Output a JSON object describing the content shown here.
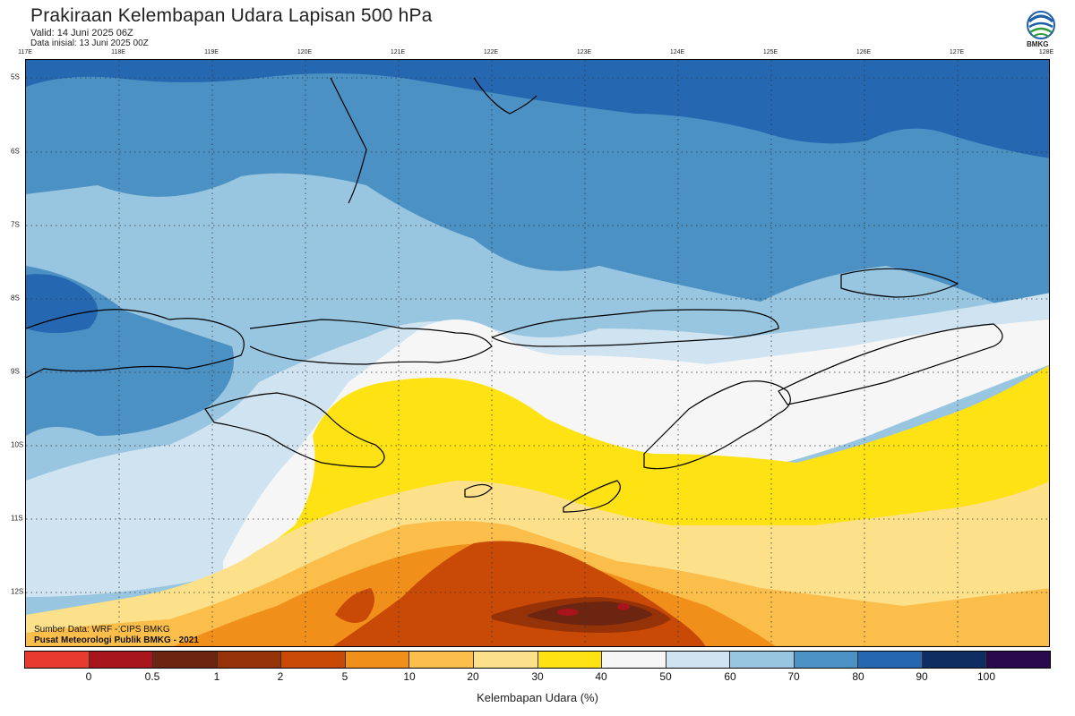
{
  "header": {
    "title": "Prakiraan Kelembapan Udara Lapisan 500 hPa",
    "valid": "Valid: 14 Juni 2025 06Z",
    "init": "Data inisial: 13 Juni 2025 00Z",
    "logo_text": "BMKG"
  },
  "axes": {
    "lon_labels": [
      "117E",
      "118E",
      "119E",
      "120E",
      "121E",
      "122E",
      "123E",
      "124E",
      "125E",
      "126E",
      "127E",
      "128E"
    ],
    "lat_labels": [
      "5S",
      "6S",
      "7S",
      "8S",
      "9S",
      "10S",
      "11S",
      "12S"
    ]
  },
  "credits": {
    "source": "Sumber Data: WRF - CIPS BMKG",
    "org": "Pusat Meteorologi Publik BMKG - 2021"
  },
  "legend": {
    "colors": [
      "#e63b2e",
      "#a8141b",
      "#6b2510",
      "#963207",
      "#c84a06",
      "#f0901a",
      "#fbbe4a",
      "#fde08a",
      "#ffe214",
      "#f6f6f6",
      "#cfe3f0",
      "#98c5e0",
      "#4b91c4",
      "#2567b0",
      "#0f2d61",
      "#2a0a4a"
    ],
    "boundaries": [
      "0",
      "0.5",
      "1",
      "2",
      "5",
      "10",
      "20",
      "30",
      "40",
      "50",
      "60",
      "70",
      "80",
      "90",
      "100"
    ],
    "unit_label": "Kelembapan Udara (%)"
  }
}
